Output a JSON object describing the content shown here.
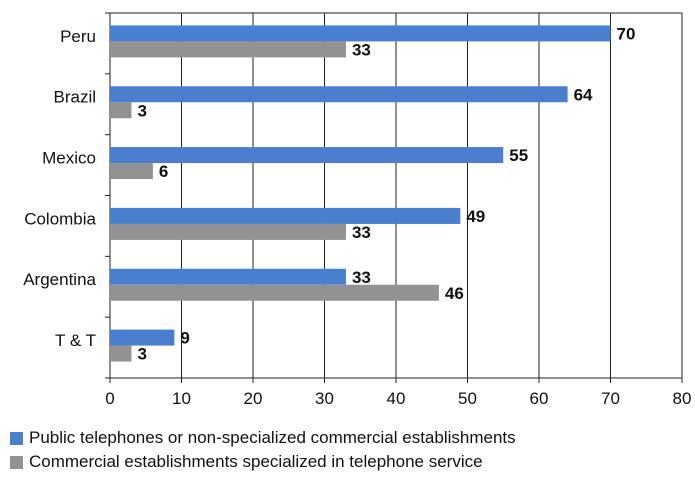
{
  "chart_data": {
    "type": "bar",
    "orientation": "horizontal",
    "categories": [
      "Peru",
      "Brazil",
      "Mexico",
      "Colombia",
      "Argentina",
      "T & T"
    ],
    "series": [
      {
        "name": "Public telephones or non-specialized commercial establishments",
        "color": "#4a7fcf",
        "values": [
          70,
          64,
          55,
          49,
          33,
          9
        ],
        "labels": [
          "70",
          "64",
          "55",
          "49",
          "33",
          "9"
        ]
      },
      {
        "name": "Commercial establishments specialized in telephone service",
        "color": "#929292",
        "values": [
          33,
          3,
          6,
          33,
          46,
          3
        ],
        "labels": [
          "33",
          "3",
          "6",
          "33",
          "46",
          "3"
        ]
      }
    ],
    "xlim": [
      0,
      80
    ],
    "xticks": [
      "0",
      "10",
      "20",
      "30",
      "40",
      "50",
      "60",
      "70",
      "80"
    ],
    "grid": "vertical",
    "legend_position": "bottom"
  }
}
